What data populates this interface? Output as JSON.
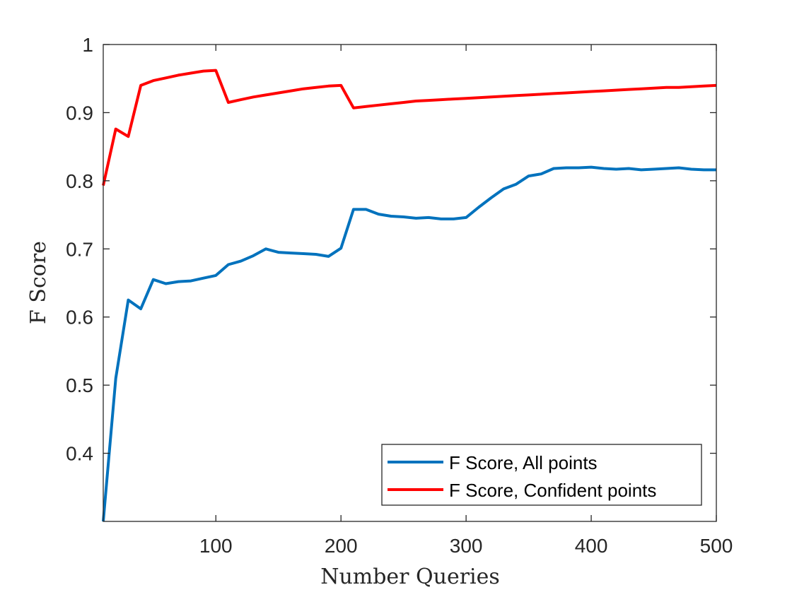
{
  "chart_data": {
    "type": "line",
    "title": "",
    "xlabel": "Number Queries",
    "ylabel": "F Score",
    "xlim": [
      10,
      500
    ],
    "ylim": [
      0.3,
      1.0
    ],
    "xticks": [
      100,
      200,
      300,
      400,
      500
    ],
    "xtick_labels": [
      "100",
      "200",
      "300",
      "400",
      "500"
    ],
    "yticks": [
      0.4,
      0.5,
      0.6,
      0.7,
      0.8,
      0.9,
      1.0
    ],
    "ytick_labels": [
      "0.4",
      "0.5",
      "0.6",
      "0.7",
      "0.8",
      "0.9",
      "1"
    ],
    "grid": false,
    "legend_position": "bottom-right",
    "x": [
      10,
      20,
      30,
      40,
      50,
      60,
      70,
      80,
      90,
      100,
      110,
      120,
      130,
      140,
      150,
      160,
      170,
      180,
      190,
      200,
      210,
      220,
      230,
      240,
      250,
      260,
      270,
      280,
      290,
      300,
      310,
      320,
      330,
      340,
      350,
      360,
      370,
      380,
      390,
      400,
      410,
      420,
      430,
      440,
      450,
      460,
      470,
      480,
      490,
      500
    ],
    "series": [
      {
        "name": "F Score, All points",
        "color": "#0072BD",
        "values": [
          0.3,
          0.51,
          0.625,
          0.612,
          0.655,
          0.649,
          0.652,
          0.653,
          0.657,
          0.661,
          0.677,
          0.682,
          0.69,
          0.7,
          0.695,
          0.694,
          0.693,
          0.692,
          0.689,
          0.701,
          0.758,
          0.758,
          0.751,
          0.748,
          0.747,
          0.745,
          0.746,
          0.744,
          0.744,
          0.746,
          0.761,
          0.775,
          0.788,
          0.795,
          0.807,
          0.81,
          0.818,
          0.819,
          0.819,
          0.82,
          0.818,
          0.817,
          0.818,
          0.816,
          0.817,
          0.818,
          0.819,
          0.817,
          0.816,
          0.816
        ]
      },
      {
        "name": "F Score, Confident points",
        "color": "#FF0000",
        "values": [
          0.793,
          0.876,
          0.865,
          0.94,
          0.947,
          0.951,
          0.955,
          0.958,
          0.961,
          0.962,
          0.915,
          0.919,
          0.923,
          0.926,
          0.929,
          0.932,
          0.935,
          0.937,
          0.939,
          0.94,
          0.907,
          0.909,
          0.911,
          0.913,
          0.915,
          0.917,
          0.918,
          0.919,
          0.92,
          0.921,
          0.922,
          0.923,
          0.924,
          0.925,
          0.926,
          0.927,
          0.928,
          0.929,
          0.93,
          0.931,
          0.932,
          0.933,
          0.934,
          0.935,
          0.936,
          0.937,
          0.937,
          0.938,
          0.939,
          0.94
        ]
      }
    ]
  }
}
